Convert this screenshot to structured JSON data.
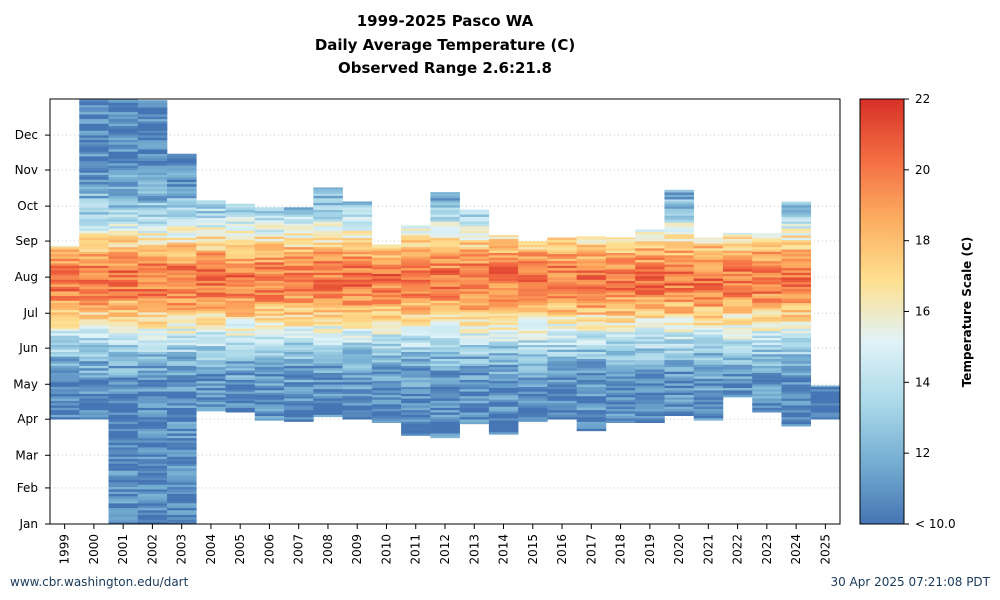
{
  "chart_data": {
    "type": "heatmap",
    "title": "1999-2025 Pasco WA",
    "subtitle": "Daily Average Temperature (C)",
    "subtitle2": "Observed Range 2.6:21.8",
    "x_categories": [
      "1999",
      "2000",
      "2001",
      "2002",
      "2003",
      "2004",
      "2005",
      "2006",
      "2007",
      "2008",
      "2009",
      "2010",
      "2011",
      "2012",
      "2013",
      "2014",
      "2015",
      "2016",
      "2017",
      "2018",
      "2019",
      "2020",
      "2021",
      "2022",
      "2023",
      "2024",
      "2025"
    ],
    "y_ticks": [
      "Jan",
      "Feb",
      "Mar",
      "Apr",
      "May",
      "Jun",
      "Jul",
      "Aug",
      "Sep",
      "Oct",
      "Nov",
      "Dec"
    ],
    "colorbar": {
      "label": "Temperature Scale (C)",
      "ticks": [
        "< 10.0",
        "12",
        "14",
        "16",
        "18",
        "20",
        "22"
      ],
      "range": [
        10,
        22
      ],
      "colors": [
        "#4575b4",
        "#74add1",
        "#abd9e9",
        "#e0f3f8",
        "#fee090",
        "#fdae61",
        "#f46d43",
        "#d73027"
      ]
    },
    "columns_day_of_year": [
      {
        "year": "1999",
        "start": 91,
        "end": 240
      },
      {
        "year": "2000",
        "start": 91,
        "end": 366
      },
      {
        "year": "2001",
        "start": 1,
        "end": 366
      },
      {
        "year": "2002",
        "start": 1,
        "end": 365
      },
      {
        "year": "2003",
        "start": 1,
        "end": 319
      },
      {
        "year": "2004",
        "start": 98,
        "end": 279
      },
      {
        "year": "2005",
        "start": 97,
        "end": 276
      },
      {
        "year": "2006",
        "start": 90,
        "end": 273
      },
      {
        "year": "2007",
        "start": 89,
        "end": 273
      },
      {
        "year": "2008",
        "start": 93,
        "end": 290
      },
      {
        "year": "2009",
        "start": 91,
        "end": 278
      },
      {
        "year": "2010",
        "start": 88,
        "end": 241
      },
      {
        "year": "2011",
        "start": 77,
        "end": 258
      },
      {
        "year": "2012",
        "start": 75,
        "end": 286
      },
      {
        "year": "2013",
        "start": 87,
        "end": 271
      },
      {
        "year": "2014",
        "start": 78,
        "end": 249
      },
      {
        "year": "2015",
        "start": 89,
        "end": 244
      },
      {
        "year": "2016",
        "start": 91,
        "end": 247
      },
      {
        "year": "2017",
        "start": 81,
        "end": 248
      },
      {
        "year": "2018",
        "start": 88,
        "end": 247
      },
      {
        "year": "2019",
        "start": 88,
        "end": 254
      },
      {
        "year": "2020",
        "start": 94,
        "end": 288
      },
      {
        "year": "2021",
        "start": 90,
        "end": 247
      },
      {
        "year": "2022",
        "start": 110,
        "end": 251
      },
      {
        "year": "2023",
        "start": 97,
        "end": 251
      },
      {
        "year": "2024",
        "start": 85,
        "end": 278
      },
      {
        "year": "2025",
        "start": 91,
        "end": 120
      }
    ],
    "y_range_day_of_year": [
      1,
      366
    ],
    "grid": true
  },
  "footer": {
    "left": "www.cbr.washington.edu/dart",
    "right": "30 Apr 2025 07:21:08 PDT"
  }
}
